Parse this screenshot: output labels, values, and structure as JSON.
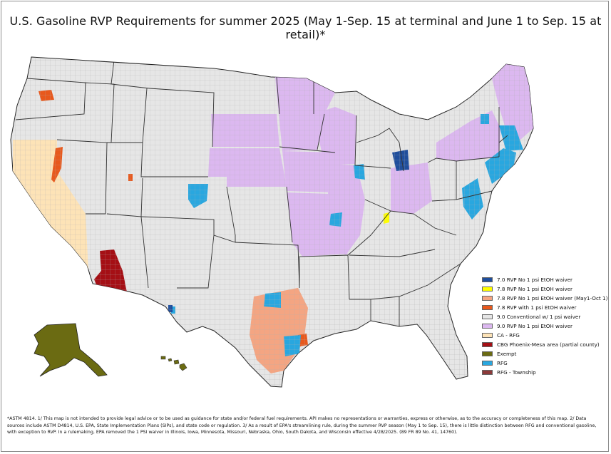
{
  "title": "U.S. Gasoline RVP Requirements for summer 2025 (May 1-Sep. 15 at terminal and June 1 to Sep. 15 at retail)*",
  "legend": [
    {
      "label": "7.0 RVP No 1 psi EtOH waiver",
      "color": "#1f4e9c"
    },
    {
      "label": "7.8 RVP No 1 psi EtOH waiver",
      "color": "#ffff00"
    },
    {
      "label": "7.8 RVP No 1 psi EtOH waiver (May1-Oct 1)",
      "color": "#f4a582"
    },
    {
      "label": "7.8 RVP with 1 psi EtOH waiver",
      "color": "#e8581c"
    },
    {
      "label": "9.0 Conventional w/ 1 psi waiver",
      "color": "#e6e6e6"
    },
    {
      "label": "9.0 RVP No 1 psi EtOH waiver",
      "color": "#dcb8f0"
    },
    {
      "label": "CA - RFG",
      "color": "#fde3b7"
    },
    {
      "label": "CBG  Phoenix-Mesa area (partial county)",
      "color": "#a50f15"
    },
    {
      "label": "Exempt",
      "color": "#6b6b12"
    },
    {
      "label": "RFG",
      "color": "#29a7df"
    },
    {
      "label": "RFG - Township",
      "color": "#8c3a3a"
    }
  ],
  "footnote": "*ASTM 4814. 1/ This map is not intended to provide legal advice or to be used as guidance for state and/or federal fuel requirements. API makes no representations or warranties, express or otherwise, as to the accuracy or completeness of this map. 2/ Data sources include ASTM D4814, U.S. EPA, State Implementation Plans (SIPs), and state code or regulation. 3/ As a result of EPA's streamlining rule, during the summer RVP season (May 1 to Sep. 15), there is little distinction between RFG and conventional gasoline, with exception to RVP. In a rulemaking, EPA removed the 1 PSI waiver in Illinois, Iowa, Minnesota, Missouri, Nebraska, Ohio, South Dakota, and Wisconsin effective 4/28/2025. (89 FR 89 No. 41, 14760)."
}
